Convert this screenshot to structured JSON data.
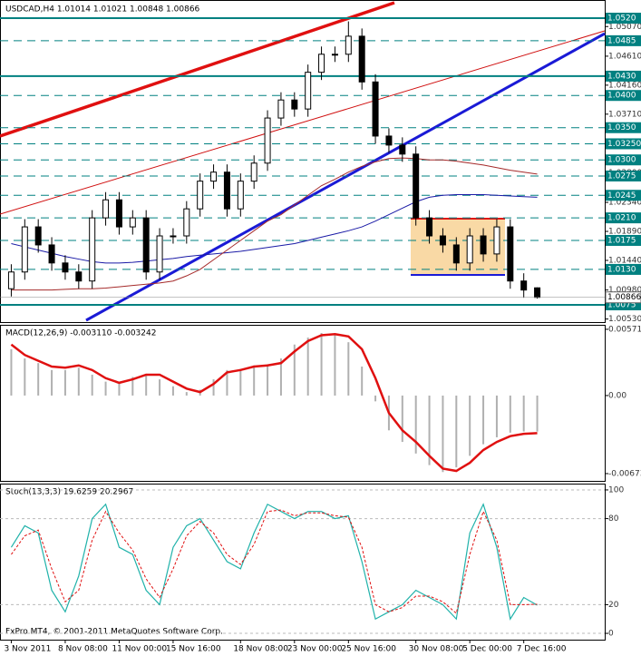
{
  "chart_data": [
    {
      "type": "candlestick",
      "title": "USDCAD,H4  1.01014 1.01021 1.00848 1.00866",
      "categories": [
        "3 Nov 2011",
        null,
        null,
        null,
        "8 Nov 08:00",
        null,
        null,
        null,
        "11 Nov 00:00",
        null,
        null,
        null,
        "15 Nov 16:00",
        null,
        null,
        null,
        null,
        "18 Nov 08:00",
        null,
        null,
        null,
        "23 Nov 00:00",
        null,
        null,
        null,
        "25 Nov 16:00",
        null,
        null,
        null,
        null,
        "30 Nov 08:00",
        null,
        null,
        null,
        "5 Dec 00:00",
        null,
        null,
        null,
        "7 Dec 16:00",
        null
      ],
      "open": [
        1.01,
        1.0126,
        1.0196,
        1.0168,
        1.014,
        1.0126,
        1.0112,
        1.021,
        1.0238,
        1.0196,
        1.021,
        1.0126,
        1.0182,
        1.0182,
        1.0224,
        1.0267,
        1.0281,
        1.0224,
        1.0267,
        1.0295,
        1.0365,
        1.0393,
        1.0379,
        1.0436,
        1.0464,
        1.0464,
        1.0492,
        1.0421,
        1.0337,
        1.0323,
        1.0309,
        1.021,
        1.0182,
        1.0168,
        1.014,
        1.0182,
        1.0154,
        1.0196,
        1.0112,
        1.01014
      ],
      "high": [
        1.0138,
        1.0208,
        1.0208,
        1.018,
        1.0152,
        1.0138,
        1.0222,
        1.025,
        1.025,
        1.0222,
        1.0222,
        1.0194,
        1.0194,
        1.0236,
        1.0279,
        1.0293,
        1.0293,
        1.0279,
        1.0307,
        1.0377,
        1.0405,
        1.0405,
        1.0448,
        1.0476,
        1.0476,
        1.0515,
        1.0504,
        1.0433,
        1.0349,
        1.0335,
        1.0321,
        1.0222,
        1.0194,
        1.018,
        1.0194,
        1.0194,
        1.0208,
        1.0208,
        1.0124,
        1.01021
      ],
      "low": [
        1.0088,
        1.0114,
        1.0156,
        1.0128,
        1.0114,
        1.01,
        1.01,
        1.0198,
        1.0184,
        1.0184,
        1.0114,
        1.0114,
        1.017,
        1.017,
        1.0212,
        1.0255,
        1.0212,
        1.0212,
        1.0255,
        1.0283,
        1.0353,
        1.0367,
        1.0367,
        1.0424,
        1.0452,
        1.0452,
        1.0409,
        1.0325,
        1.0311,
        1.0297,
        1.0198,
        1.017,
        1.0156,
        1.0128,
        1.0128,
        1.0142,
        1.0142,
        1.01,
        1.0086,
        1.00848
      ],
      "close": [
        1.0126,
        1.0196,
        1.0168,
        1.014,
        1.0126,
        1.0112,
        1.021,
        1.0238,
        1.0196,
        1.021,
        1.0126,
        1.0182,
        1.0182,
        1.0224,
        1.0267,
        1.0281,
        1.0224,
        1.0267,
        1.0295,
        1.0365,
        1.0393,
        1.0379,
        1.0436,
        1.0464,
        1.0464,
        1.0492,
        1.0421,
        1.0337,
        1.0323,
        1.0309,
        1.021,
        1.0182,
        1.0168,
        1.014,
        1.0182,
        1.0154,
        1.0196,
        1.0112,
        1.0098,
        1.00866
      ],
      "overlays": [
        {
          "color": "#1a1aa6",
          "values": [
            1.017,
            1.0165,
            1.016,
            1.0155,
            1.015,
            1.0146,
            1.0142,
            1.014,
            1.014,
            1.0141,
            1.0143,
            1.0145,
            1.0147,
            1.015,
            1.0152,
            1.0154,
            1.0156,
            1.0158,
            1.0161,
            1.0164,
            1.0167,
            1.017,
            1.0175,
            1.018,
            1.0185,
            1.019,
            1.0196,
            1.0205,
            1.0215,
            1.0225,
            1.0235,
            1.0242,
            1.0245,
            1.0246,
            1.0246,
            1.0246,
            1.0245,
            1.0244,
            1.0243,
            1.0242
          ]
        },
        {
          "color": "#a52a2a",
          "values": [
            1.0098,
            1.0098,
            1.0098,
            1.0098,
            1.0099,
            1.01,
            1.01,
            1.0101,
            1.0103,
            1.0105,
            1.0107,
            1.0109,
            1.0112,
            1.012,
            1.013,
            1.0145,
            1.016,
            1.0175,
            1.019,
            1.0205,
            1.0215,
            1.023,
            1.0245,
            1.026,
            1.027,
            1.0281,
            1.029,
            1.0297,
            1.0302,
            1.0303,
            1.0302,
            1.03,
            1.03,
            1.0298,
            1.0295,
            1.0292,
            1.0288,
            1.0284,
            1.0281,
            1.0278
          ]
        }
      ],
      "ylim": [
        1.00482,
        1.05482
      ],
      "yticks": [
        {
          "value": 1.0507,
          "label": "1.05070"
        },
        {
          "value": 1.0461,
          "label": "1.04610"
        },
        {
          "value": 1.0416,
          "label": "1.04160"
        },
        {
          "value": 1.0371,
          "label": "1.03710"
        },
        {
          "value": 1.028,
          "label": "1.02800"
        },
        {
          "value": 1.0234,
          "label": "1.02340"
        },
        {
          "value": 1.0189,
          "label": "1.01890"
        },
        {
          "value": 1.0144,
          "label": "1.01440"
        },
        {
          "value": 1.0098,
          "label": "1.00980"
        },
        {
          "value": 1.0053,
          "label": "1.00530"
        }
      ],
      "levels": [
        {
          "value": 1.052,
          "label": "1.0520",
          "solid": true
        },
        {
          "value": 1.0485,
          "label": "1.0485",
          "solid": false
        },
        {
          "value": 1.043,
          "label": "1.0430",
          "solid": true
        },
        {
          "value": 1.04,
          "label": "1.0400",
          "solid": false
        },
        {
          "value": 1.035,
          "label": "1.0350",
          "solid": false
        },
        {
          "value": 1.0325,
          "label": "1.03250",
          "solid": false
        },
        {
          "value": 1.03,
          "label": "1.0300",
          "solid": false
        },
        {
          "value": 1.0275,
          "label": "1.0275",
          "solid": false
        },
        {
          "value": 1.0245,
          "label": "1.0245",
          "solid": false
        },
        {
          "value": 1.021,
          "label": "1.0210",
          "solid": false
        },
        {
          "value": 1.0175,
          "label": "1.0175",
          "solid": false
        },
        {
          "value": 1.013,
          "label": "1.0130",
          "solid": false
        },
        {
          "value": 1.0075,
          "label": "1.0075",
          "solid": true
        }
      ],
      "current": 1.00866,
      "level_color": "#008080"
    },
    {
      "type": "macd",
      "title": "MACD(12,26,9) -0.003110 -0.003242",
      "values": [
        0.004,
        0.0032,
        0.0028,
        0.0022,
        0.0022,
        0.0024,
        0.0018,
        0.0012,
        0.0012,
        0.0016,
        0.0018,
        0.0014,
        0.0008,
        0.0003,
        0.0005,
        0.0014,
        0.0022,
        0.0023,
        0.0026,
        0.0027,
        0.0032,
        0.0044,
        0.005,
        0.0054,
        0.0053,
        0.0046,
        0.0025,
        -0.0005,
        -0.003,
        -0.004,
        -0.005,
        -0.006,
        -0.0066,
        -0.0062,
        -0.0052,
        -0.0042,
        -0.0036,
        -0.0032,
        -0.0031,
        -0.00311
      ],
      "signal": [
        0.0044,
        0.0035,
        0.003,
        0.0025,
        0.0024,
        0.0026,
        0.0022,
        0.0015,
        0.0011,
        0.0014,
        0.0018,
        0.0018,
        0.0012,
        0.0006,
        0.0003,
        0.001,
        0.002,
        0.0022,
        0.0025,
        0.0026,
        0.0028,
        0.0038,
        0.0047,
        0.0052,
        0.0053,
        0.0051,
        0.004,
        0.0015,
        -0.0015,
        -0.003,
        -0.004,
        -0.0052,
        -0.0063,
        -0.0065,
        -0.0058,
        -0.0047,
        -0.004,
        -0.0035,
        -0.0033,
        -0.003242
      ],
      "color": "#b0b0b0",
      "signal_color": "#e01010",
      "ylim": [
        -0.00736,
        0.0061
      ],
      "yticks": [
        0.005714,
        {
          "value": 0,
          "label": "0.00"
        },
        -0.006731
      ]
    },
    {
      "type": "stochastic",
      "title": "Stoch(13,3,3) 19.6259 20.2967",
      "values": [
        60,
        75,
        70,
        30,
        15,
        40,
        80,
        90,
        60,
        55,
        30,
        20,
        60,
        75,
        80,
        65,
        50,
        45,
        70,
        90,
        85,
        80,
        85,
        85,
        80,
        82,
        50,
        10,
        15,
        20,
        30,
        25,
        20,
        10,
        70,
        90,
        60,
        10,
        25,
        19.6259
      ],
      "signal": [
        55,
        68,
        72,
        45,
        22,
        30,
        65,
        85,
        70,
        58,
        38,
        25,
        45,
        68,
        78,
        70,
        55,
        48,
        62,
        85,
        86,
        82,
        84,
        84,
        82,
        81,
        60,
        20,
        15,
        18,
        26,
        26,
        22,
        14,
        55,
        85,
        65,
        20,
        20,
        20.2967
      ],
      "color": "#20b2aa",
      "signal_color": "#e01010",
      "ylim": [
        -4.4,
        104.4
      ],
      "yticks": [
        100,
        80,
        20,
        0
      ]
    }
  ],
  "footer": "FxPro MT4, © 2001-2011 MetaQuotes Software Corp."
}
